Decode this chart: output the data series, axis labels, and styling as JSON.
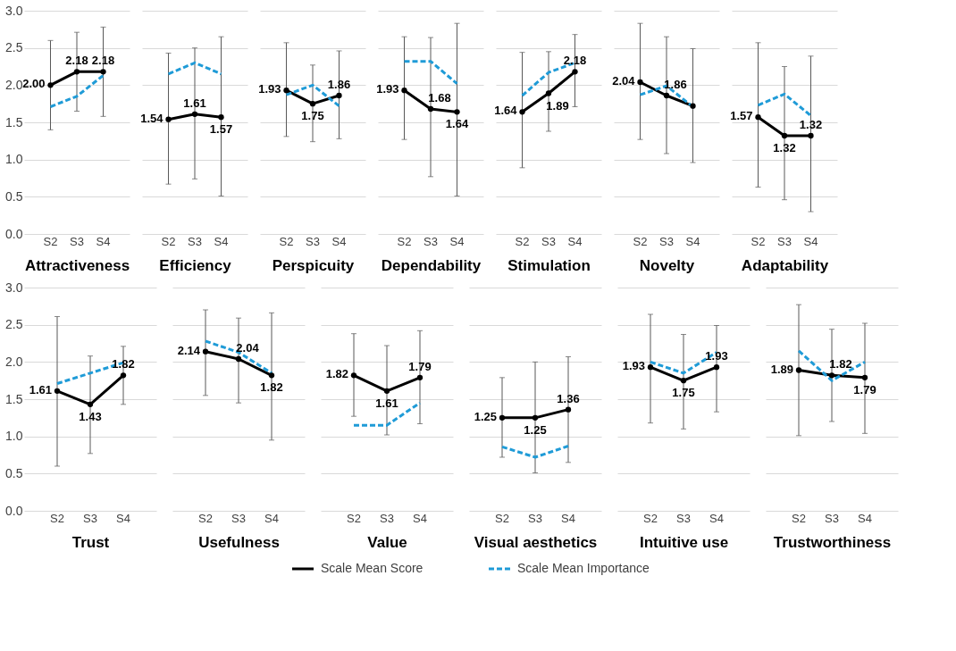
{
  "chart_data": [
    {
      "type": "line",
      "xlabel": "Attractiveness",
      "categories": [
        "S2",
        "S3",
        "S4"
      ],
      "ylim": [
        0,
        3
      ],
      "yticks": [
        {
          "value": 0,
          "label": "0.0"
        },
        0.5,
        {
          "value": 1,
          "label": "1.0"
        },
        1.5,
        {
          "value": 2,
          "label": "2.0"
        },
        2.5,
        {
          "value": 3,
          "label": "3.0"
        }
      ],
      "grid": "y",
      "legend": "bottom",
      "series": [
        {
          "name": "Scale Mean Score",
          "color": "#000000",
          "values": [
            2.0,
            2.18,
            2.18
          ],
          "value_labels": [
            "2.00",
            "2.18",
            "2.18"
          ],
          "errors": [
            [
              1.4,
              2.6
            ],
            [
              1.65,
              2.71
            ],
            [
              1.58,
              2.78
            ]
          ],
          "marker": "circle",
          "line_style": "solid"
        },
        {
          "name": "Scale Mean Importance",
          "color": "#1f9bd7",
          "values": [
            1.71,
            1.85,
            2.13
          ],
          "line_style": "dashed"
        }
      ]
    },
    {
      "type": "line",
      "xlabel": "Efficiency",
      "categories": [
        "S2",
        "S3",
        "S4"
      ],
      "ylim": [
        0,
        3
      ],
      "yticks": [
        0.0,
        0.5,
        1.0,
        1.5,
        2.0,
        2.5,
        3.0
      ],
      "grid": "y",
      "tick_labels": "x",
      "series": [
        {
          "name": "Scale Mean Score",
          "color": "#000000",
          "values": [
            1.54,
            1.61,
            1.57
          ],
          "value_labels": [
            "1.54",
            "1.61",
            "1.57"
          ],
          "errors": [
            [
              0.67,
              2.43
            ],
            [
              0.74,
              2.5
            ],
            [
              0.51,
              2.65
            ]
          ],
          "marker": "circle",
          "line_style": "solid"
        },
        {
          "name": "Scale Mean Importance",
          "color": "#1f9bd7",
          "values": [
            2.15,
            2.3,
            2.15
          ],
          "line_style": "dashed"
        }
      ]
    },
    {
      "type": "line",
      "xlabel": "Perspicuity",
      "categories": [
        "S2",
        "S3",
        "S4"
      ],
      "ylim": [
        0,
        3
      ],
      "yticks": [
        0.0,
        0.5,
        1.0,
        1.5,
        2.0,
        2.5,
        3.0
      ],
      "grid": "y",
      "tick_labels": "x",
      "series": [
        {
          "name": "Scale Mean Score",
          "color": "#000000",
          "values": [
            1.93,
            1.75,
            1.86
          ],
          "value_labels": [
            "1.93",
            "1.75",
            "1.86"
          ],
          "errors": [
            [
              1.31,
              2.57
            ],
            [
              1.24,
              2.27
            ],
            [
              1.28,
              2.46
            ]
          ],
          "marker": "circle",
          "line_style": "solid"
        },
        {
          "name": "Scale Mean Importance",
          "color": "#1f9bd7",
          "values": [
            1.87,
            2.0,
            1.72
          ],
          "line_style": "dashed"
        }
      ]
    },
    {
      "type": "line",
      "xlabel": "Dependability",
      "categories": [
        "S2",
        "S3",
        "S4"
      ],
      "ylim": [
        0,
        3
      ],
      "yticks": [
        0.0,
        0.5,
        1.0,
        1.5,
        2.0,
        2.5,
        3.0
      ],
      "grid": "y",
      "tick_labels": "x",
      "series": [
        {
          "name": "Scale Mean Score",
          "color": "#000000",
          "values": [
            1.93,
            1.68,
            1.64
          ],
          "value_labels": [
            "1.93",
            "1.68",
            "1.64"
          ],
          "errors": [
            [
              1.27,
              2.65
            ],
            [
              0.77,
              2.64
            ],
            [
              0.51,
              2.83
            ]
          ],
          "marker": "circle",
          "line_style": "solid"
        },
        {
          "name": "Scale Mean Importance",
          "color": "#1f9bd7",
          "values": [
            2.32,
            2.32,
            2.02
          ],
          "line_style": "dashed"
        }
      ]
    },
    {
      "type": "line",
      "xlabel": "Stimulation",
      "categories": [
        "S2",
        "S3",
        "S4"
      ],
      "ylim": [
        0,
        3
      ],
      "yticks": [
        0.0,
        0.5,
        1.0,
        1.5,
        2.0,
        2.5,
        3.0
      ],
      "grid": "y",
      "tick_labels": "x",
      "series": [
        {
          "name": "Scale Mean Score",
          "color": "#000000",
          "values": [
            1.64,
            1.89,
            2.18
          ],
          "value_labels": [
            "1.64",
            "1.89",
            "2.18"
          ],
          "errors": [
            [
              0.89,
              2.44
            ],
            [
              1.38,
              2.45
            ],
            [
              1.71,
              2.68
            ]
          ],
          "marker": "circle",
          "line_style": "solid"
        },
        {
          "name": "Scale Mean Importance",
          "color": "#1f9bd7",
          "values": [
            1.86,
            2.17,
            2.3
          ],
          "line_style": "dashed"
        }
      ]
    },
    {
      "type": "line",
      "xlabel": "Novelty",
      "categories": [
        "S2",
        "S3",
        "S4"
      ],
      "ylim": [
        0,
        3
      ],
      "yticks": [
        0.0,
        0.5,
        1.0,
        1.5,
        2.0,
        2.5,
        3.0
      ],
      "grid": "y",
      "tick_labels": "x",
      "series": [
        {
          "name": "Scale Mean Score",
          "color": "#000000",
          "values": [
            2.04,
            1.86,
            1.72
          ],
          "value_labels": [
            "2.04",
            "1.86",
            null
          ],
          "errors": [
            [
              1.27,
              2.83
            ],
            [
              1.08,
              2.65
            ],
            [
              0.96,
              2.49
            ]
          ],
          "marker": "circle",
          "line_style": "solid"
        },
        {
          "name": "Scale Mean Importance",
          "color": "#1f9bd7",
          "values": [
            1.87,
            1.99,
            1.71
          ],
          "line_style": "dashed"
        }
      ]
    },
    {
      "type": "line",
      "xlabel": "Adaptability",
      "categories": [
        "S2",
        "S3",
        "S4"
      ],
      "ylim": [
        0,
        3
      ],
      "yticks": [
        0.0,
        0.5,
        1.0,
        1.5,
        2.0,
        2.5,
        3.0
      ],
      "grid": "y",
      "tick_labels": "x",
      "series": [
        {
          "name": "Scale Mean Score",
          "color": "#000000",
          "values": [
            1.57,
            1.32,
            1.32
          ],
          "value_labels": [
            "1.57",
            "1.32",
            "1.32"
          ],
          "errors": [
            [
              0.63,
              2.57
            ],
            [
              0.46,
              2.25
            ],
            [
              0.3,
              2.39
            ]
          ],
          "marker": "circle",
          "line_style": "solid"
        },
        {
          "name": "Scale Mean Importance",
          "color": "#1f9bd7",
          "values": [
            1.73,
            1.88,
            1.59
          ],
          "line_style": "dashed"
        }
      ]
    },
    {
      "type": "line",
      "xlabel": "Trust",
      "categories": [
        "S2",
        "S3",
        "S4"
      ],
      "ylim": [
        0,
        3
      ],
      "yticks": [
        {
          "value": 0,
          "label": "0.0"
        },
        0.5,
        {
          "value": 1,
          "label": "1.0"
        },
        1.5,
        {
          "value": 2,
          "label": "2.0"
        },
        2.5,
        {
          "value": 3,
          "label": "3.0"
        }
      ],
      "grid": "y",
      "series": [
        {
          "name": "Scale Mean Score",
          "color": "#000000",
          "values": [
            1.61,
            1.43,
            1.82
          ],
          "value_labels": [
            "1.61",
            "1.43",
            "1.82"
          ],
          "errors": [
            [
              0.6,
              2.61
            ],
            [
              0.77,
              2.08
            ],
            [
              1.43,
              2.21
            ]
          ],
          "marker": "circle",
          "line_style": "solid"
        },
        {
          "name": "Scale Mean Importance",
          "color": "#1f9bd7",
          "values": [
            1.71,
            1.85,
            1.99
          ],
          "line_style": "dashed"
        }
      ]
    },
    {
      "type": "line",
      "xlabel": "Usefulness",
      "categories": [
        "S2",
        "S3",
        "S4"
      ],
      "ylim": [
        0,
        3
      ],
      "yticks": [
        0.0,
        0.5,
        1.0,
        1.5,
        2.0,
        2.5,
        3.0
      ],
      "grid": "y",
      "tick_labels": "x",
      "series": [
        {
          "name": "Scale Mean Score",
          "color": "#000000",
          "values": [
            2.14,
            2.04,
            1.82
          ],
          "value_labels": [
            "2.14",
            "2.04",
            "1.82"
          ],
          "errors": [
            [
              1.55,
              2.7
            ],
            [
              1.45,
              2.59
            ],
            [
              0.95,
              2.66
            ]
          ],
          "marker": "circle",
          "line_style": "solid"
        },
        {
          "name": "Scale Mean Importance",
          "color": "#1f9bd7",
          "values": [
            2.28,
            2.13,
            1.85
          ],
          "line_style": "dashed"
        }
      ]
    },
    {
      "type": "line",
      "xlabel": "Value",
      "categories": [
        "S2",
        "S3",
        "S4"
      ],
      "ylim": [
        0,
        3
      ],
      "yticks": [
        0.0,
        0.5,
        1.0,
        1.5,
        2.0,
        2.5,
        3.0
      ],
      "grid": "y",
      "tick_labels": "x",
      "series": [
        {
          "name": "Scale Mean Score",
          "color": "#000000",
          "values": [
            1.82,
            1.61,
            1.79
          ],
          "value_labels": [
            "1.82",
            "1.61",
            "1.79"
          ],
          "errors": [
            [
              1.27,
              2.38
            ],
            [
              1.02,
              2.22
            ],
            [
              1.17,
              2.42
            ]
          ],
          "marker": "circle",
          "line_style": "solid"
        },
        {
          "name": "Scale Mean Importance",
          "color": "#1f9bd7",
          "values": [
            1.15,
            1.15,
            1.45
          ],
          "line_style": "dashed"
        }
      ]
    },
    {
      "type": "line",
      "xlabel": "Visual aesthetics",
      "categories": [
        "S2",
        "S3",
        "S4"
      ],
      "ylim": [
        0,
        3
      ],
      "yticks": [
        0.0,
        0.5,
        1.0,
        1.5,
        2.0,
        2.5,
        3.0
      ],
      "grid": "y",
      "tick_labels": "x",
      "series": [
        {
          "name": "Scale Mean Score",
          "color": "#000000",
          "values": [
            1.25,
            1.25,
            1.36
          ],
          "value_labels": [
            "1.25",
            "1.25",
            "1.36"
          ],
          "errors": [
            [
              0.72,
              1.79
            ],
            [
              0.51,
              2.0
            ],
            [
              0.65,
              2.07
            ]
          ],
          "marker": "circle",
          "line_style": "solid"
        },
        {
          "name": "Scale Mean Importance",
          "color": "#1f9bd7",
          "values": [
            0.86,
            0.72,
            0.87
          ],
          "line_style": "dashed"
        }
      ]
    },
    {
      "type": "line",
      "xlabel": "Intuitive use",
      "categories": [
        "S2",
        "S3",
        "S4"
      ],
      "ylim": [
        0,
        3
      ],
      "yticks": [
        0.0,
        0.5,
        1.0,
        1.5,
        2.0,
        2.5,
        3.0
      ],
      "grid": "y",
      "tick_labels": "x",
      "series": [
        {
          "name": "Scale Mean Score",
          "color": "#000000",
          "values": [
            1.93,
            1.75,
            1.93
          ],
          "value_labels": [
            "1.93",
            "1.75",
            "1.93"
          ],
          "errors": [
            [
              1.18,
              2.64
            ],
            [
              1.1,
              2.37
            ],
            [
              1.33,
              2.49
            ]
          ],
          "marker": "circle",
          "line_style": "solid"
        },
        {
          "name": "Scale Mean Importance",
          "color": "#1f9bd7",
          "values": [
            2.0,
            1.85,
            2.13
          ],
          "line_style": "dashed"
        }
      ]
    },
    {
      "type": "line",
      "xlabel": "Trustworthiness",
      "categories": [
        "S2",
        "S3",
        "S4"
      ],
      "ylim": [
        0,
        3
      ],
      "yticks": [
        0.0,
        0.5,
        1.0,
        1.5,
        2.0,
        2.5,
        3.0
      ],
      "grid": "y",
      "tick_labels": "x",
      "series": [
        {
          "name": "Scale Mean Score",
          "color": "#000000",
          "values": [
            1.89,
            1.82,
            1.79
          ],
          "value_labels": [
            "1.89",
            "1.82",
            "1.79"
          ],
          "errors": [
            [
              1.01,
              2.77
            ],
            [
              1.2,
              2.44
            ],
            [
              1.04,
              2.52
            ]
          ],
          "marker": "circle",
          "line_style": "solid"
        },
        {
          "name": "Scale Mean Importance",
          "color": "#1f9bd7",
          "values": [
            2.15,
            1.75,
            2.0
          ],
          "line_style": "dashed"
        }
      ]
    }
  ]
}
